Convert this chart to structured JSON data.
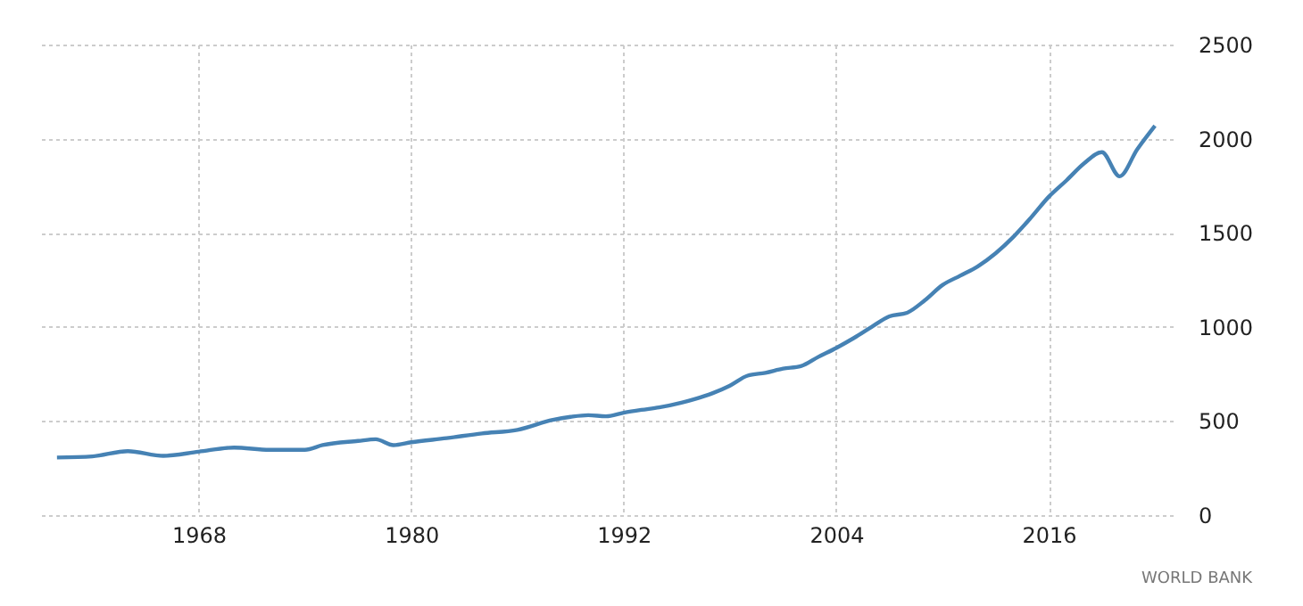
{
  "chart_data": {
    "type": "line",
    "x": [
      1960,
      1962,
      1964,
      1966,
      1968,
      1970,
      1972,
      1974,
      1975,
      1977,
      1978,
      1979,
      1980,
      1982,
      1984,
      1986,
      1988,
      1989,
      1990,
      1991,
      1992,
      1993,
      1994,
      1996,
      1997,
      1998,
      1999,
      2000,
      2001,
      2002,
      2003,
      2004,
      2005,
      2006,
      2007,
      2008,
      2009,
      2010,
      2011,
      2012,
      2013,
      2014,
      2015,
      2016,
      2017,
      2018,
      2019,
      2020,
      2021,
      2022
    ],
    "series": [
      {
        "color": "#4682b4",
        "values": [
          306,
          312,
          340,
          315,
          337,
          359,
          347,
          347,
          372,
          394,
          403,
          372,
          387,
          409,
          434,
          453,
          506,
          522,
          531,
          525,
          544,
          559,
          572,
          616,
          647,
          688,
          741,
          756,
          778,
          791,
          841,
          888,
          941,
          1000,
          1056,
          1075,
          1141,
          1222,
          1272,
          1322,
          1391,
          1478,
          1581,
          1691,
          1778,
          1869,
          1928,
          1800,
          1944,
          2069
        ]
      }
    ],
    "xlim": [
      1959,
      2023
    ],
    "xticks": [
      1968,
      1980,
      1992,
      2004,
      2016
    ],
    "ylim": [
      0,
      2500
    ],
    "yticks": [
      0,
      500,
      1000,
      1500,
      2000,
      2500
    ],
    "grid": true,
    "line_style": "solid",
    "marker": "none",
    "annotations": [
      "WORLD BANK"
    ]
  }
}
